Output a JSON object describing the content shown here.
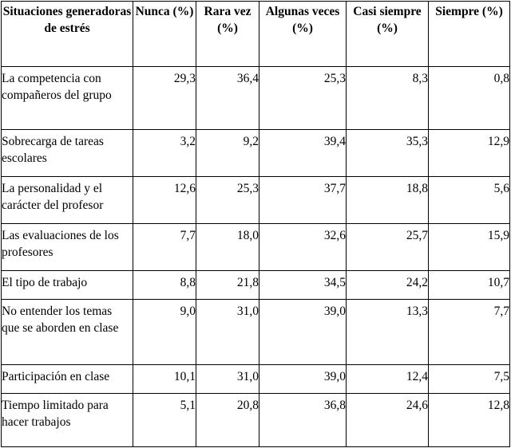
{
  "table": {
    "headers": [
      "Situaciones generadoras de estrés",
      "Nunca (%)",
      "Rara vez (%)",
      "Algunas veces (%)",
      "Casi siempre (%)",
      "Siempre (%)"
    ],
    "rows": [
      {
        "situation": "La competencia con compañeros del grupo",
        "values": [
          "29,3",
          "36,4",
          "25,3",
          "8,3",
          "0,8"
        ]
      },
      {
        "situation": "Sobrecarga de tareas escolares",
        "values": [
          "3,2",
          "9,2",
          "39,4",
          "35,3",
          "12,9"
        ]
      },
      {
        "situation": "La personalidad y el carácter del profesor",
        "values": [
          "12,6",
          "25,3",
          "37,7",
          "18,8",
          "5,6"
        ]
      },
      {
        "situation": "Las evaluaciones de los profesores",
        "values": [
          "7,7",
          "18,0",
          "32,6",
          "25,7",
          "15,9"
        ]
      },
      {
        "situation": "El tipo de trabajo",
        "values": [
          "8,8",
          "21,8",
          "34,5",
          "24,2",
          "10,7"
        ]
      },
      {
        "situation": "No entender los temas que se aborden en clase",
        "values": [
          "9,0",
          "31,0",
          "39,0",
          "13,3",
          "7,7"
        ]
      },
      {
        "situation": "Participación en clase",
        "values": [
          "10,1",
          "31,0",
          "39,0",
          "12,4",
          "7,5"
        ]
      },
      {
        "situation": "Tiempo limitado para hacer trabajos",
        "values": [
          "5,1",
          "20,8",
          "36,8",
          "24,6",
          "12,8"
        ]
      }
    ]
  }
}
